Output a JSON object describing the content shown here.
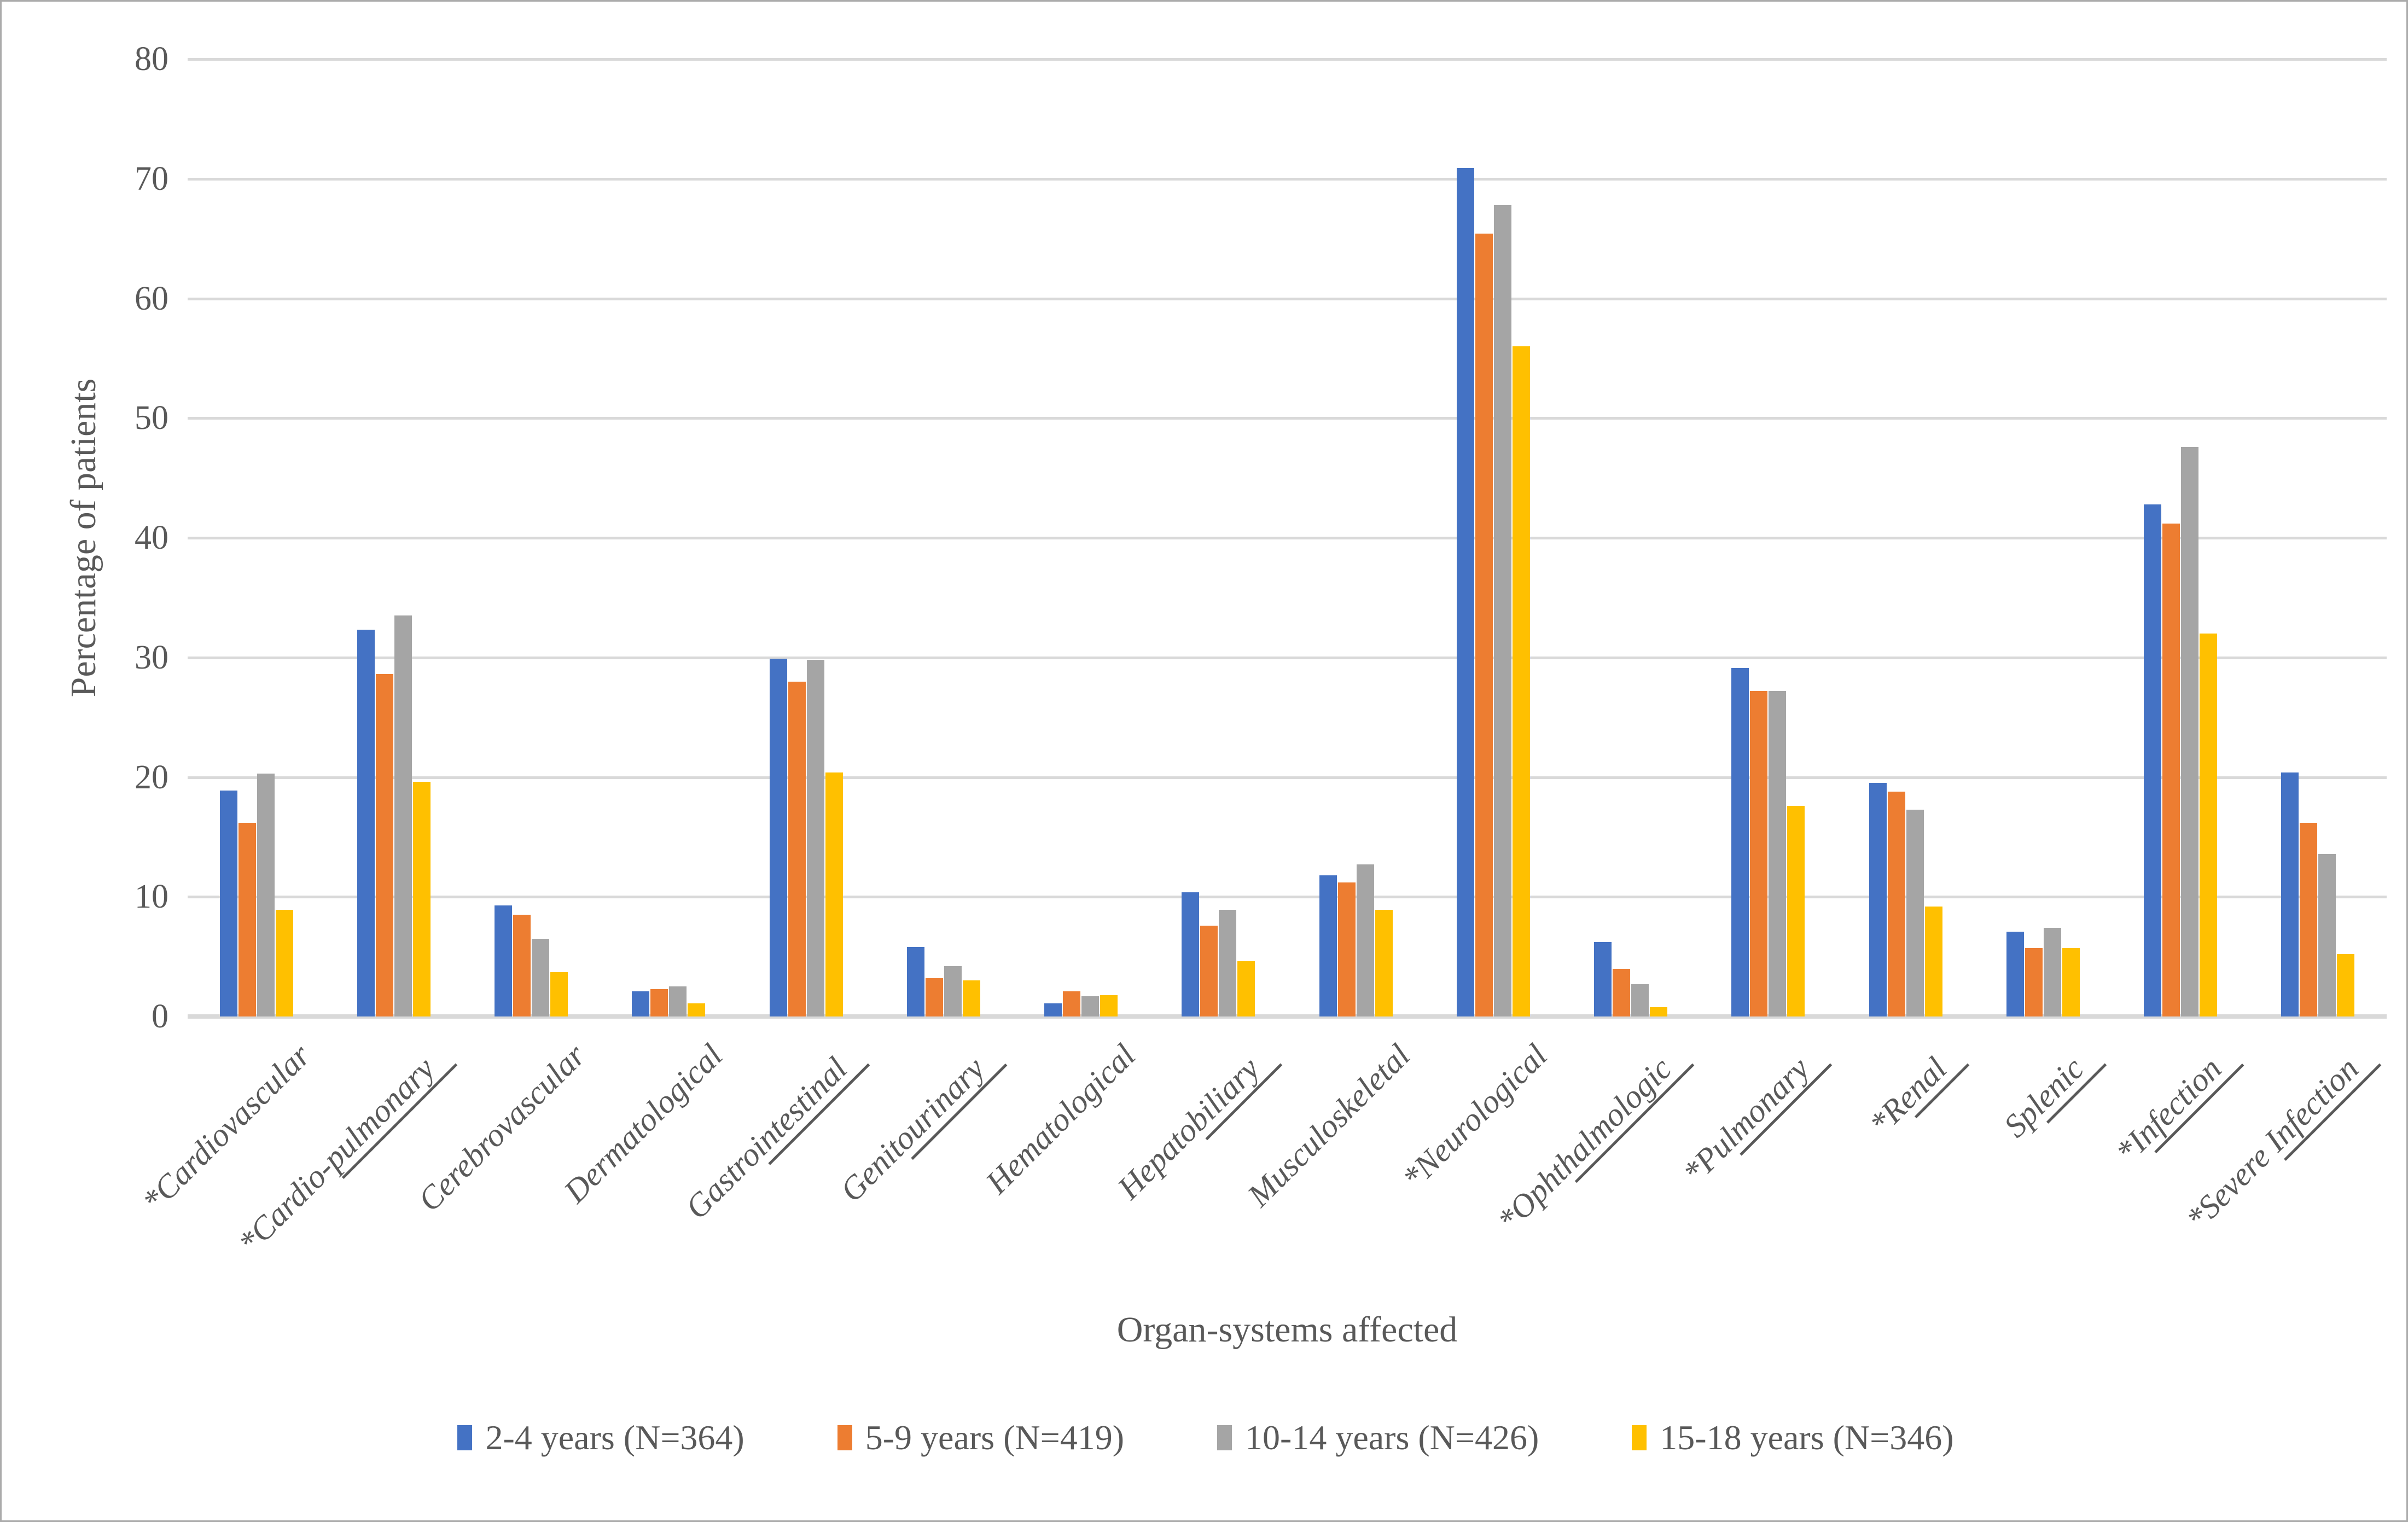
{
  "figure": {
    "background": "#ffffff",
    "border_color": "#ababab",
    "text_color": "#595959",
    "gridline_color": "#d9d9d9"
  },
  "chart_data": {
    "type": "bar",
    "title": "",
    "xlabel": "Organ-systems affected",
    "ylabel": "Percentage of patients",
    "ylim": [
      0,
      80
    ],
    "ytick_step": 10,
    "yticks": [
      "0",
      "10",
      "20",
      "30",
      "40",
      "50",
      "60",
      "70",
      "80"
    ],
    "grid": true,
    "legend_position": "bottom",
    "categories": [
      {
        "label": "*Cardiovascular",
        "underline": ""
      },
      {
        "label": "*Cardio-pulmonary",
        "underline": "pulmonary"
      },
      {
        "label": "Cerebrovascular",
        "underline": ""
      },
      {
        "label": "Dermatological",
        "underline": ""
      },
      {
        "label": "Gastrointestinal",
        "underline": "intestinal"
      },
      {
        "label": "Genitourinary",
        "underline": "ourinary"
      },
      {
        "label": "Hematological",
        "underline": ""
      },
      {
        "label": "Hepatobiliary",
        "underline": "biliary"
      },
      {
        "label": "Musculoskeletal",
        "underline": ""
      },
      {
        "label": "*Neurological",
        "underline": ""
      },
      {
        "label": "*Ophthalmologic",
        "underline": "halmologic"
      },
      {
        "label": "*Pulmonary",
        "underline": "lmonary"
      },
      {
        "label": "*Renal",
        "underline": "enal"
      },
      {
        "label": "Splenic",
        "underline": "lenic"
      },
      {
        "label": "*Infection",
        "underline": "nfection"
      },
      {
        "label": "*Severe Infection",
        "underline": "Infection"
      }
    ],
    "series": [
      {
        "name": "2-4 years (N=364)",
        "color": "#4472C4",
        "values": [
          18.9,
          32.3,
          9.3,
          2.1,
          29.9,
          5.8,
          1.1,
          10.4,
          11.8,
          70.9,
          6.2,
          29.1,
          19.5,
          7.1,
          42.8,
          20.4
        ]
      },
      {
        "name": "5-9 years (N=419)",
        "color": "#ED7D31",
        "values": [
          16.2,
          28.6,
          8.5,
          2.3,
          28.0,
          3.2,
          2.1,
          7.6,
          11.2,
          65.4,
          4.0,
          27.2,
          18.8,
          5.7,
          41.2,
          16.2
        ]
      },
      {
        "name": "10-14 years (N=426)",
        "color": "#A5A5A5",
        "values": [
          20.3,
          33.5,
          6.5,
          2.5,
          29.8,
          4.2,
          1.7,
          8.9,
          12.7,
          67.8,
          2.7,
          27.2,
          17.3,
          7.4,
          47.6,
          13.6
        ]
      },
      {
        "name": "15-18 years (N=346)",
        "color": "#FFC000",
        "values": [
          8.9,
          19.6,
          3.7,
          1.1,
          20.4,
          3.0,
          1.8,
          4.6,
          8.9,
          56.0,
          0.8,
          17.6,
          9.2,
          5.7,
          32.0,
          5.2
        ]
      }
    ]
  }
}
